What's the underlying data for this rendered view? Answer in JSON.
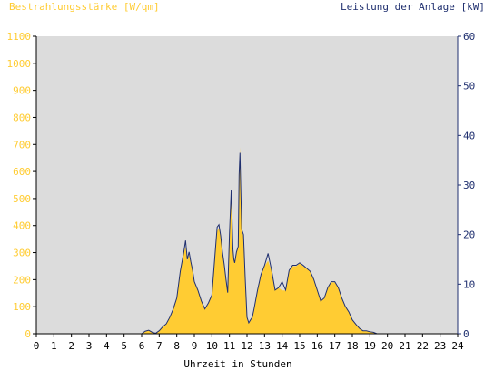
{
  "chart_data": {
    "type": "area",
    "xlabel": "Uhrzeit in Stunden",
    "ylabel_left": "Bestrahlungsstärke [W/qm]",
    "ylabel_right": "Leistung der Anlage [kW]",
    "xlim": [
      0,
      24
    ],
    "ylim_left": [
      0,
      1100
    ],
    "ylim_right": [
      0,
      60
    ],
    "x_ticks": [
      0,
      1,
      2,
      3,
      4,
      5,
      6,
      7,
      8,
      9,
      10,
      11,
      12,
      13,
      14,
      15,
      16,
      17,
      18,
      19,
      20,
      21,
      22,
      23,
      24
    ],
    "y_ticks_left": [
      0,
      100,
      200,
      300,
      400,
      500,
      600,
      700,
      800,
      900,
      1000,
      1100
    ],
    "y_ticks_right": [
      0,
      10,
      20,
      30,
      40,
      50,
      60
    ],
    "grid": false,
    "colors": {
      "plot_background": "#dcdcdc",
      "irradiance_fill": "#ffcc33",
      "power_line": "#1f2f6f",
      "left_axis_text": "#ffcc33",
      "right_axis_text": "#1f2f6f",
      "axis": "#000000"
    },
    "series": [
      {
        "axis": "left",
        "style": "area",
        "x": [
          0,
          6.0,
          6.2,
          6.4,
          6.6,
          6.8,
          7.0,
          7.2,
          7.4,
          7.6,
          7.8,
          8.0,
          8.2,
          8.4,
          8.5,
          8.6,
          8.7,
          8.8,
          8.9,
          9.0,
          9.2,
          9.4,
          9.6,
          9.8,
          10.0,
          10.2,
          10.3,
          10.4,
          10.5,
          10.6,
          10.7,
          10.8,
          10.9,
          11.0,
          11.1,
          11.2,
          11.25,
          11.3,
          11.4,
          11.5,
          11.55,
          11.6,
          11.65,
          11.7,
          11.8,
          11.9,
          12.0,
          12.1,
          12.2,
          12.3,
          12.4,
          12.6,
          12.8,
          13.0,
          13.2,
          13.4,
          13.6,
          13.8,
          14.0,
          14.2,
          14.4,
          14.6,
          14.8,
          15.0,
          15.2,
          15.4,
          15.6,
          15.8,
          16.0,
          16.2,
          16.4,
          16.6,
          16.8,
          17.0,
          17.2,
          17.4,
          17.6,
          17.8,
          18.0,
          18.2,
          18.4,
          18.6,
          18.8,
          19.0,
          19.2,
          19.4,
          19.6,
          24
        ],
        "values": [
          0,
          0,
          8,
          12,
          5,
          2,
          10,
          25,
          35,
          60,
          90,
          130,
          230,
          300,
          320,
          270,
          290,
          260,
          230,
          190,
          160,
          120,
          90,
          110,
          140,
          300,
          380,
          390,
          360,
          300,
          250,
          200,
          150,
          360,
          520,
          310,
          280,
          260,
          300,
          320,
          580,
          690,
          520,
          380,
          360,
          200,
          60,
          40,
          50,
          60,
          90,
          160,
          220,
          250,
          270,
          230,
          160,
          170,
          160,
          160,
          230,
          250,
          250,
          260,
          250,
          240,
          230,
          200,
          160,
          120,
          130,
          170,
          190,
          190,
          170,
          130,
          100,
          80,
          50,
          35,
          20,
          10,
          10,
          8,
          5,
          0,
          0,
          0
        ]
      },
      {
        "axis": "right",
        "style": "line",
        "x": [
          0,
          6.0,
          6.2,
          6.4,
          6.6,
          6.8,
          7.0,
          7.2,
          7.4,
          7.6,
          7.8,
          8.0,
          8.2,
          8.4,
          8.5,
          8.6,
          8.7,
          8.8,
          8.9,
          9.0,
          9.2,
          9.4,
          9.6,
          9.8,
          10.0,
          10.2,
          10.3,
          10.4,
          10.5,
          10.6,
          10.7,
          10.8,
          10.9,
          11.0,
          11.1,
          11.2,
          11.25,
          11.3,
          11.4,
          11.5,
          11.55,
          11.6,
          11.65,
          11.7,
          11.8,
          11.9,
          12.0,
          12.1,
          12.2,
          12.3,
          12.4,
          12.6,
          12.8,
          13.0,
          13.2,
          13.4,
          13.6,
          13.8,
          14.0,
          14.2,
          14.4,
          14.6,
          14.8,
          15.0,
          15.2,
          15.4,
          15.6,
          15.8,
          16.0,
          16.2,
          16.4,
          16.6,
          16.8,
          17.0,
          17.2,
          17.4,
          17.6,
          17.8,
          18.0,
          18.2,
          18.4,
          18.6,
          18.8,
          19.0,
          19.2,
          19.4,
          19.6,
          24
        ],
        "values": [
          0,
          0,
          0.5,
          0.7,
          0.3,
          0.1,
          0.6,
          1.4,
          2,
          3.3,
          5,
          7.2,
          12.6,
          16.5,
          18.8,
          15,
          16.5,
          14.5,
          12.8,
          10.5,
          8.8,
          6.6,
          5,
          6.2,
          7.8,
          17,
          21.5,
          22,
          19.8,
          16.5,
          14,
          11,
          8.3,
          20,
          29,
          17,
          15,
          14.3,
          16.5,
          17.6,
          32,
          36.5,
          28.5,
          21,
          20,
          11,
          3.3,
          2.2,
          2.8,
          3.3,
          5,
          8.8,
          12,
          13.8,
          16.2,
          12.8,
          8.8,
          9.3,
          10.5,
          8.8,
          12.8,
          13.8,
          13.8,
          14.3,
          13.8,
          13.2,
          12.6,
          11,
          8.8,
          6.6,
          7.2,
          9.3,
          10.5,
          10.5,
          9.3,
          7.2,
          5.5,
          4.4,
          2.8,
          1.9,
          1.1,
          0.6,
          0.6,
          0.4,
          0.3,
          0,
          0,
          0
        ]
      }
    ]
  }
}
